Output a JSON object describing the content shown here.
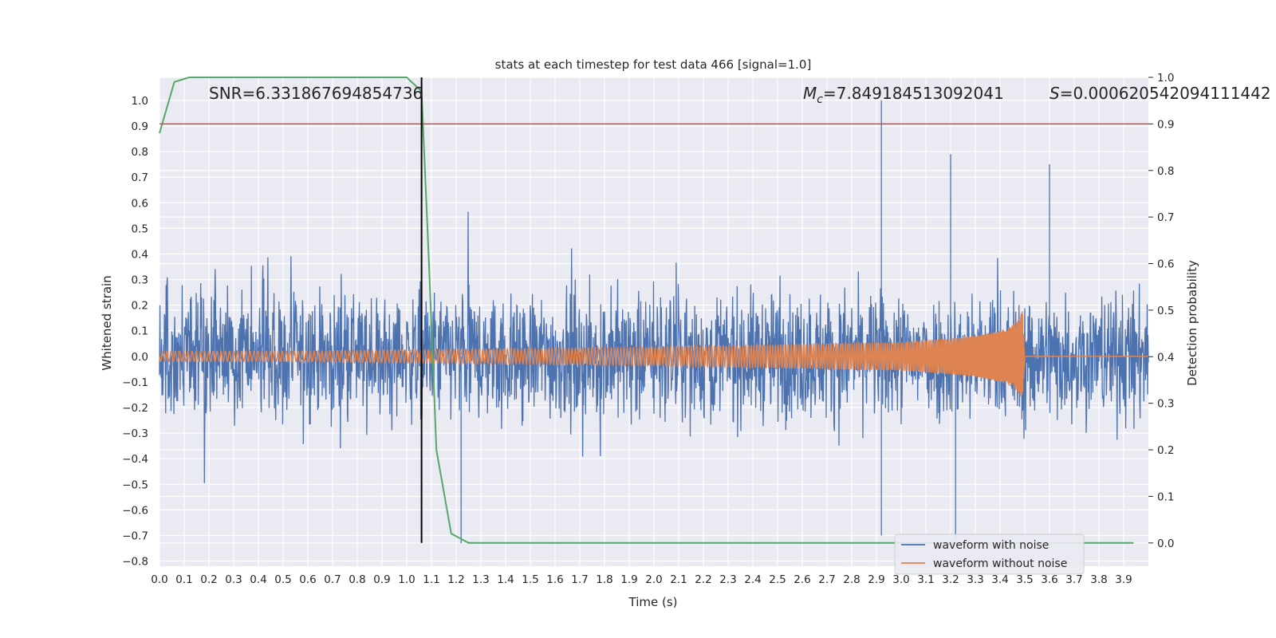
{
  "chart_data": {
    "type": "line",
    "title": "stats at each timestep for test data 466 [signal=1.0]",
    "xlabel": "Time (s)",
    "ylabel": "Whitened strain",
    "ylabel_right": "Detection probability",
    "xlim": [
      0.0,
      4.0
    ],
    "ylim": [
      -0.82,
      1.09
    ],
    "ylim_right": [
      -0.05,
      1.0
    ],
    "xticks": [
      0.0,
      0.1,
      0.2,
      0.3,
      0.4,
      0.5,
      0.6,
      0.7,
      0.8,
      0.9,
      1.0,
      1.1,
      1.2,
      1.3,
      1.4,
      1.5,
      1.6,
      1.7,
      1.8,
      1.9,
      2.0,
      2.1,
      2.2,
      2.3,
      2.4,
      2.5,
      2.6,
      2.7,
      2.8,
      2.9,
      3.0,
      3.1,
      3.2,
      3.3,
      3.4,
      3.5,
      3.6,
      3.7,
      3.8,
      3.9
    ],
    "xtick_labels": [
      "0.0",
      "0.1",
      "0.2",
      "0.3",
      "0.4",
      "0.5",
      "0.6",
      "0.7",
      "0.8",
      "0.9",
      "1.0",
      "1.1",
      "1.2",
      "1.3",
      "1.4",
      "1.5",
      "1.6",
      "1.7",
      "1.8",
      "1.9",
      "2.0",
      "2.1",
      "2.2",
      "2.3",
      "2.4",
      "2.5",
      "2.6",
      "2.7",
      "2.8",
      "2.9",
      "3.0",
      "3.1",
      "3.2",
      "3.3",
      "3.4",
      "3.5",
      "3.6",
      "3.7",
      "3.8",
      "3.9"
    ],
    "yticks": [
      -0.8,
      -0.7,
      -0.6,
      -0.5,
      -0.4,
      -0.3,
      -0.2,
      -0.1,
      0.0,
      0.1,
      0.2,
      0.3,
      0.4,
      0.5,
      0.6,
      0.7,
      0.8,
      0.9,
      1.0
    ],
    "ytick_labels": [
      "−0.8",
      "−0.7",
      "−0.6",
      "−0.5",
      "−0.4",
      "−0.3",
      "−0.2",
      "−0.1",
      "0.0",
      "0.1",
      "0.2",
      "0.3",
      "0.4",
      "0.5",
      "0.6",
      "0.7",
      "0.8",
      "0.9",
      "1.0"
    ],
    "yticks_right": [
      0.0,
      0.1,
      0.2,
      0.3,
      0.4,
      0.5,
      0.6,
      0.7,
      0.8,
      0.9,
      1.0
    ],
    "ytick_labels_right": [
      "0.0",
      "0.1",
      "0.2",
      "0.3",
      "0.4",
      "0.5",
      "0.6",
      "0.7",
      "0.8",
      "0.9",
      "1.0"
    ],
    "grid": true,
    "legend_position": "bottom-right",
    "annotations": {
      "snr": "SNR=6.331867694854736",
      "mc_symbol": "M",
      "mc_subscript": "c",
      "mc_value": "=7.849184513092041",
      "s_symbol": "S",
      "s_value": "=0.000620542094111442"
    },
    "series": [
      {
        "name": "waveform with noise",
        "axis": "left",
        "color": "#4c72b0",
        "description_range": [
          -0.76,
          1.0
        ],
        "peaks": [
          {
            "x": 2.92,
            "y": 1.0
          },
          {
            "x": 3.2,
            "y": 0.79
          },
          {
            "x": 3.6,
            "y": 0.75
          },
          {
            "x": 2.92,
            "y": -0.7
          },
          {
            "x": 3.22,
            "y": -0.71
          },
          {
            "x": 1.22,
            "y": -0.73
          }
        ]
      },
      {
        "name": "waveform without noise",
        "axis": "left",
        "color": "#dd8452",
        "points": [
          [
            0.0,
            0.0
          ],
          [
            0.5,
            0.0
          ],
          [
            1.0,
            0.0
          ],
          [
            1.5,
            0.0
          ],
          [
            2.0,
            0.0
          ],
          [
            2.5,
            0.0
          ],
          [
            3.0,
            0.0
          ],
          [
            3.3,
            0.0
          ],
          [
            3.45,
            0.0
          ],
          [
            3.49,
            0.0
          ],
          [
            3.5,
            0.0
          ],
          [
            4.0,
            0.0
          ]
        ],
        "envelope": [
          [
            0.0,
            0.02
          ],
          [
            0.5,
            0.02
          ],
          [
            1.0,
            0.025
          ],
          [
            1.5,
            0.03
          ],
          [
            2.0,
            0.035
          ],
          [
            2.5,
            0.045
          ],
          [
            3.0,
            0.055
          ],
          [
            3.2,
            0.07
          ],
          [
            3.3,
            0.08
          ],
          [
            3.4,
            0.1
          ],
          [
            3.45,
            0.12
          ],
          [
            3.48,
            0.15
          ],
          [
            3.49,
            0.19
          ],
          [
            3.5,
            0.02
          ],
          [
            3.52,
            0.005
          ],
          [
            4.0,
            0.0
          ]
        ]
      },
      {
        "name": "detection probability",
        "axis": "right",
        "color": "#55a868",
        "points": [
          [
            0.0,
            0.88
          ],
          [
            0.06,
            0.99
          ],
          [
            0.12,
            1.0
          ],
          [
            0.2,
            1.0
          ],
          [
            0.4,
            1.0
          ],
          [
            0.6,
            1.0
          ],
          [
            0.8,
            1.0
          ],
          [
            1.0,
            1.0
          ],
          [
            1.06,
            0.97
          ],
          [
            1.09,
            0.6
          ],
          [
            1.12,
            0.2
          ],
          [
            1.18,
            0.02
          ],
          [
            1.25,
            0.0
          ],
          [
            1.3,
            0.0
          ],
          [
            2.0,
            0.0
          ],
          [
            3.0,
            0.0
          ],
          [
            3.94,
            0.0
          ]
        ]
      }
    ],
    "threshold": {
      "axis": "right",
      "value": 0.9,
      "color": "#c44e52"
    },
    "vline": {
      "x": 1.06,
      "color": "#000000",
      "ymin_right": 0.0,
      "ymax_right": 1.0
    }
  }
}
